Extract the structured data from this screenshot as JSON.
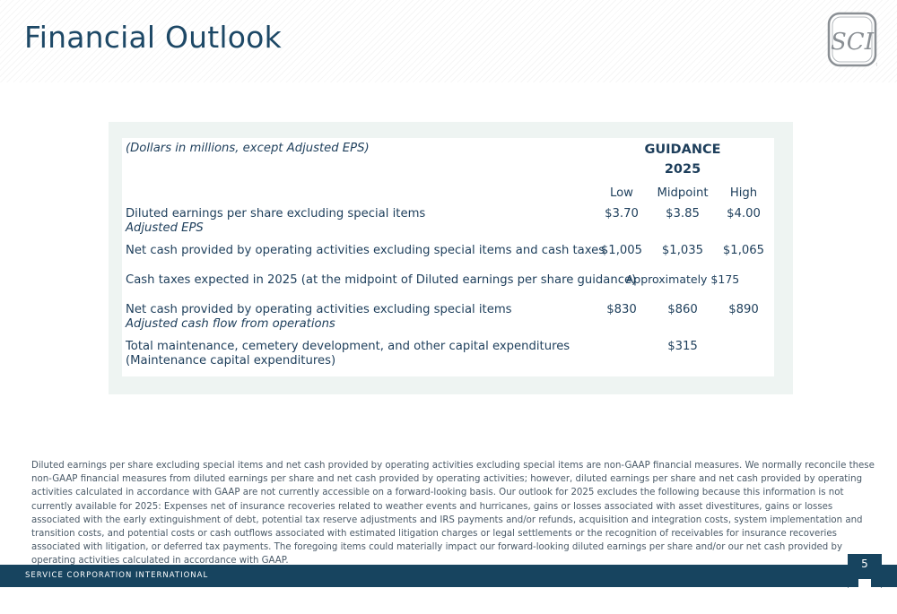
{
  "header": {
    "title": "Financial Outlook",
    "logo_text": "SCI"
  },
  "table": {
    "note": "(Dollars in millions, except Adjusted EPS)",
    "guidance_label": "GUIDANCE",
    "year": "2025",
    "columns": [
      "Low",
      "Midpoint",
      "High"
    ],
    "rows": [
      {
        "label": "Diluted earnings per share excluding special items",
        "sublabel": "Adjusted EPS",
        "low": "$3.70",
        "mid": "$3.85",
        "high": "$4.00"
      },
      {
        "label": "Net cash provided by operating activities excluding special items and cash taxes",
        "low": "$1,005",
        "mid": "$1,035",
        "high": "$1,065"
      },
      {
        "label": "Cash taxes expected in 2025 (at the midpoint of Diluted earnings per share guidance)",
        "span_value": "Approximately $175"
      },
      {
        "label": "Net cash provided by operating activities excluding special items",
        "sublabel": "Adjusted cash flow from operations",
        "low": "$830",
        "mid": "$860",
        "high": "$890"
      },
      {
        "label": "Total maintenance, cemetery development, and other capital expenditures",
        "label2": "(Maintenance capital expenditures)",
        "mid": "$315"
      }
    ]
  },
  "footnote": "Diluted earnings per share excluding special items and net cash provided by operating activities excluding special items are non-GAAP financial measures. We normally reconcile these non-GAAP financial measures from diluted earnings per share and net cash provided by operating activities; however, diluted earnings per share and net cash provided by operating activities calculated in accordance with GAAP are not currently accessible on a forward-looking basis. Our outlook for 2025 excludes the following because this information is not currently available for 2025: Expenses net of insurance recoveries related to weather events and hurricanes, gains or losses associated with asset divestitures, gains or losses associated with the early extinguishment of debt, potential tax reserve adjustments and IRS payments and/or refunds, acquisition and integration costs, system implementation and transition costs, and potential costs or cash outflows associated with estimated litigation charges or legal settlements or the recognition of receivables for insurance recoveries associated with litigation, or deferred tax payments. The foregoing items could materially impact our forward-looking diluted earnings per share and/or our net cash provided by operating activities calculated in accordance with GAAP.",
  "footer": {
    "company": "SERVICE CORPORATION INTERNATIONAL",
    "page_number": "5"
  },
  "colors": {
    "title": "#1d4866",
    "band": "#17445f",
    "panel": "#eef4f2"
  }
}
